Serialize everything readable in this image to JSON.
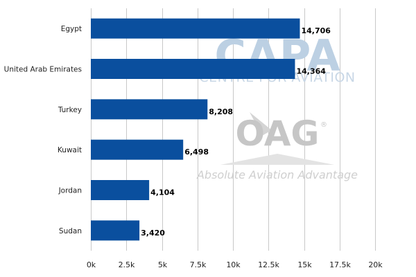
{
  "chart_data": {
    "type": "bar",
    "orientation": "horizontal",
    "categories": [
      "Egypt",
      "United Arab Emirates",
      "Turkey",
      "Kuwait",
      "Jordan",
      "Sudan"
    ],
    "values": [
      14706,
      14364,
      8208,
      6498,
      4104,
      3420
    ],
    "value_labels": [
      "14,706",
      "14,364",
      "8,208",
      "6,498",
      "4,104",
      "3,420"
    ],
    "xlim": [
      0,
      20000
    ],
    "x_ticks": [
      0,
      2500,
      5000,
      7500,
      10000,
      12500,
      15000,
      17500,
      20000
    ],
    "x_tick_labels": [
      "0k",
      "2.5k",
      "5k",
      "7.5k",
      "10k",
      "12.5k",
      "15k",
      "17.5k",
      "20k"
    ],
    "title": "",
    "xlabel": "",
    "ylabel": "",
    "grid": "vertical",
    "bar_color": "#0a4f9e",
    "grid_color": "#c8c8c8"
  },
  "watermarks": {
    "capa_logo": "CAPA",
    "capa_subtitle": "CENTRE FOR AVIATION",
    "oag_logo": "OAG",
    "oag_registered": "®",
    "oag_tagline": "Absolute Aviation Advantage"
  }
}
